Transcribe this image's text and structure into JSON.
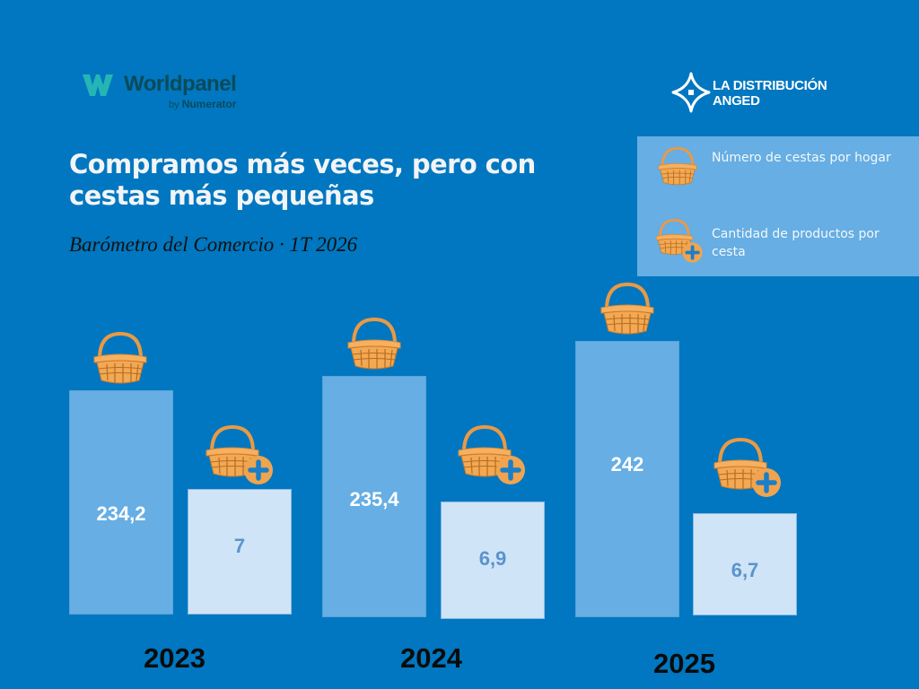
{
  "logos": {
    "left": {
      "name": "Worldpanel",
      "by": "by",
      "byline": "Numerator"
    },
    "right": {
      "line1": "LA DISTRIBUCIÓN",
      "line2": "ANGED"
    }
  },
  "header": {
    "title": "Compramos más veces, pero con cestas más pequeñas",
    "subtitle": "Barómetro del Comercio · 1T 2026"
  },
  "legend": {
    "items": [
      {
        "label": "Número de cestas por hogar",
        "icon": "basket-icon"
      },
      {
        "label": "Cantidad de productos por cesta",
        "icon": "basket-plus-icon"
      }
    ]
  },
  "colors": {
    "background": "#0077c0",
    "bar_baskets": "#66aee3",
    "bar_products": "#cfe4f7",
    "basket": "#f0a44f",
    "title": "#f2f4f6"
  },
  "chart_data": {
    "type": "bar",
    "title": "Compramos más veces, pero con cestas más pequeñas",
    "subtitle": "Barómetro del Comercio · 1T 2026",
    "categories": [
      "2023",
      "2024",
      "2025"
    ],
    "series": [
      {
        "name": "Número de cestas por hogar",
        "values": [
          234.2,
          235.4,
          242
        ],
        "labels": [
          "234,2",
          "235,4",
          "242"
        ]
      },
      {
        "name": "Cantidad de productos por cesta",
        "values": [
          7,
          6.9,
          6.7
        ],
        "labels": [
          "7",
          "6,9",
          "6,7"
        ]
      }
    ],
    "xlabel": "",
    "ylabel": "",
    "grid": false,
    "legend_position": "top-right"
  }
}
